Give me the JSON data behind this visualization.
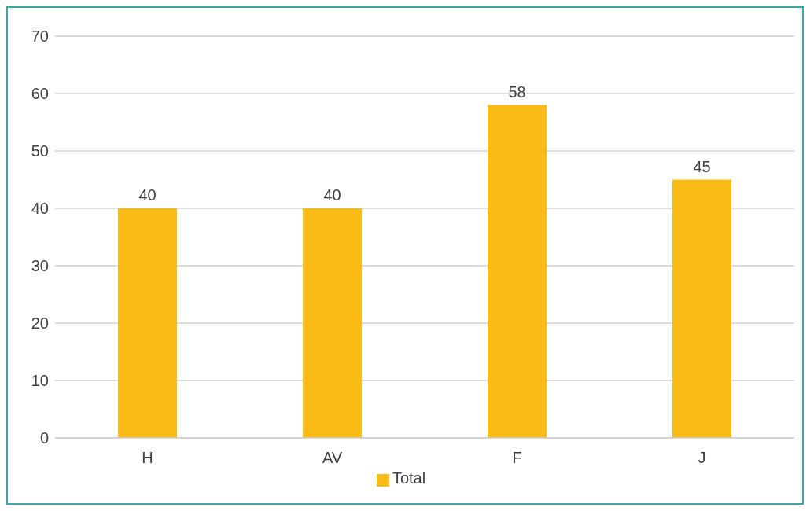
{
  "chart_data": {
    "type": "bar",
    "categories": [
      "H",
      "AV",
      "F",
      "J"
    ],
    "series": [
      {
        "name": "Total",
        "color": "#fbbb17",
        "values": [
          40,
          40,
          58,
          45
        ]
      }
    ],
    "ylim": [
      0,
      70
    ],
    "yticks": [
      0,
      10,
      20,
      30,
      40,
      50,
      60,
      70
    ],
    "grid": "y",
    "legend": "bottom",
    "data_labels": true
  }
}
